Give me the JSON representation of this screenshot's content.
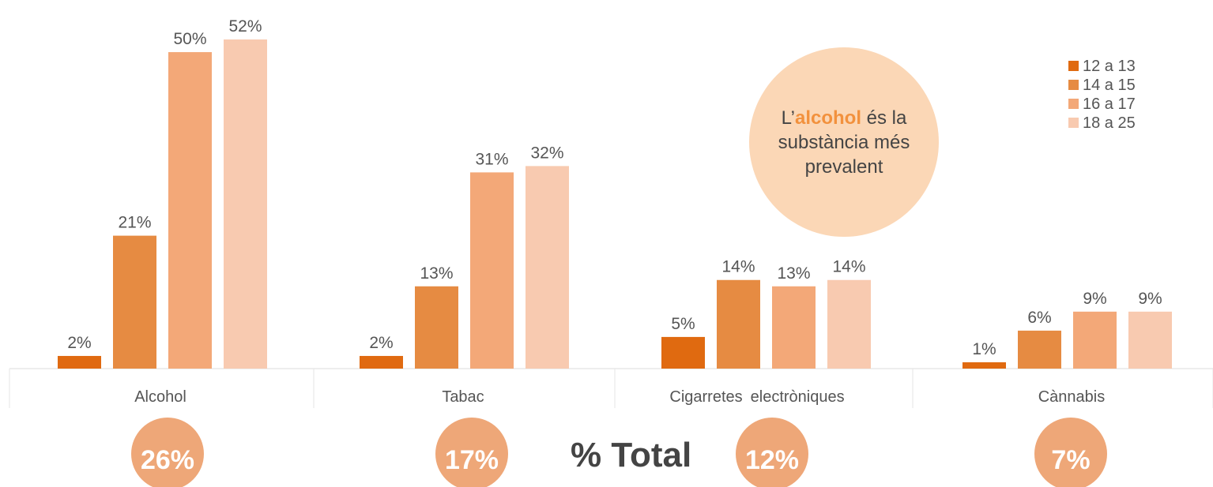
{
  "chart_data": {
    "type": "bar",
    "categories": [
      "Alcohol",
      "Tabac",
      "Cigarretes electròniques",
      "Cànnabis"
    ],
    "category_labels": [
      [
        "Alcohol"
      ],
      [
        "Tabac"
      ],
      [
        "Cigarretes",
        "electròniques"
      ],
      [
        "Cànnabis"
      ]
    ],
    "series": [
      {
        "name": "12 a 13",
        "color": "#e06a10",
        "values": [
          2,
          2,
          5,
          1
        ]
      },
      {
        "name": "14 a 15",
        "color": "#e68b42",
        "values": [
          21,
          13,
          14,
          6
        ]
      },
      {
        "name": "16 a 17",
        "color": "#f3a878",
        "values": [
          50,
          31,
          13,
          9
        ]
      },
      {
        "name": "18 a 25",
        "color": "#f8cab0",
        "values": [
          52,
          32,
          14,
          9
        ]
      }
    ],
    "value_labels": [
      [
        "2%",
        "21%",
        "50%",
        "52%"
      ],
      [
        "2%",
        "13%",
        "31%",
        "32%"
      ],
      [
        "5%",
        "14%",
        "13%",
        "14%"
      ],
      [
        "1%",
        "6%",
        "9%",
        "9%"
      ]
    ],
    "ylim": [
      0,
      52
    ],
    "legend_position": "top-right",
    "totals": [
      "26%",
      "17%",
      "12%",
      "7%"
    ],
    "totals_title": "% Total",
    "total_circle_color": "#eea778",
    "callout": {
      "prefix": "L’",
      "highlight": "alcohol",
      "rest": " és la substància més prevalent",
      "fill": "#fbd7b6",
      "highlight_color": "#f2913d"
    }
  }
}
